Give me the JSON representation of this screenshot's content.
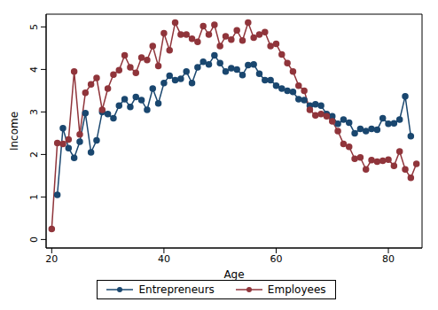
{
  "chart_data": {
    "type": "line",
    "x_label": "Age",
    "y_label": "Income",
    "x": [
      20,
      21,
      22,
      23,
      24,
      25,
      26,
      27,
      28,
      29,
      30,
      31,
      32,
      33,
      34,
      35,
      36,
      37,
      38,
      39,
      40,
      41,
      42,
      43,
      44,
      45,
      46,
      47,
      48,
      49,
      50,
      51,
      52,
      53,
      54,
      55,
      56,
      57,
      58,
      59,
      60,
      61,
      62,
      63,
      64,
      65,
      66,
      67,
      68,
      69,
      70,
      71,
      72,
      73,
      74,
      75,
      76,
      77,
      78,
      79,
      80,
      81,
      82,
      83,
      84,
      85
    ],
    "series": [
      {
        "name": "Entrepreneurs",
        "color": "#1a476f",
        "marker": "circle",
        "values": [
          null,
          1.05,
          2.62,
          2.15,
          1.92,
          2.3,
          2.97,
          2.05,
          2.33,
          3.0,
          2.95,
          2.85,
          3.15,
          3.3,
          3.12,
          3.35,
          3.28,
          3.05,
          3.55,
          3.2,
          3.68,
          3.85,
          3.75,
          3.78,
          3.95,
          3.68,
          4.05,
          4.18,
          4.12,
          4.33,
          4.15,
          3.95,
          4.03,
          4.0,
          3.87,
          4.1,
          4.12,
          3.9,
          3.75,
          3.75,
          3.62,
          3.55,
          3.5,
          3.47,
          3.3,
          3.28,
          3.15,
          3.18,
          3.15,
          2.95,
          2.9,
          2.72,
          2.82,
          2.75,
          2.5,
          2.6,
          2.55,
          2.6,
          2.58,
          2.85,
          2.72,
          2.73,
          2.82,
          3.37,
          2.43,
          null
        ]
      },
      {
        "name": "Employees",
        "color": "#90353b",
        "marker": "circle",
        "values": [
          0.25,
          2.27,
          2.25,
          2.35,
          3.95,
          2.47,
          3.45,
          3.65,
          3.8,
          3.05,
          3.55,
          3.88,
          3.98,
          4.33,
          4.05,
          3.92,
          4.28,
          4.22,
          4.55,
          4.08,
          4.85,
          4.45,
          5.1,
          4.82,
          4.82,
          4.72,
          4.65,
          5.02,
          4.82,
          5.05,
          4.55,
          4.78,
          4.7,
          4.92,
          4.68,
          5.1,
          4.75,
          4.82,
          4.88,
          4.55,
          4.6,
          4.35,
          4.15,
          3.95,
          3.62,
          3.5,
          3.05,
          2.92,
          2.95,
          2.9,
          2.78,
          2.55,
          2.25,
          2.18,
          1.9,
          1.93,
          1.65,
          1.87,
          1.83,
          1.85,
          1.88,
          1.73,
          2.07,
          1.65,
          1.45,
          1.78
        ]
      }
    ],
    "xlim": [
      19,
      86
    ],
    "ylim": [
      -0.2,
      5.3
    ],
    "xticks": [
      20,
      40,
      60,
      80
    ],
    "yticks": [
      0,
      1,
      2,
      3,
      4,
      5
    ],
    "grid": false,
    "legend": "bottom"
  }
}
